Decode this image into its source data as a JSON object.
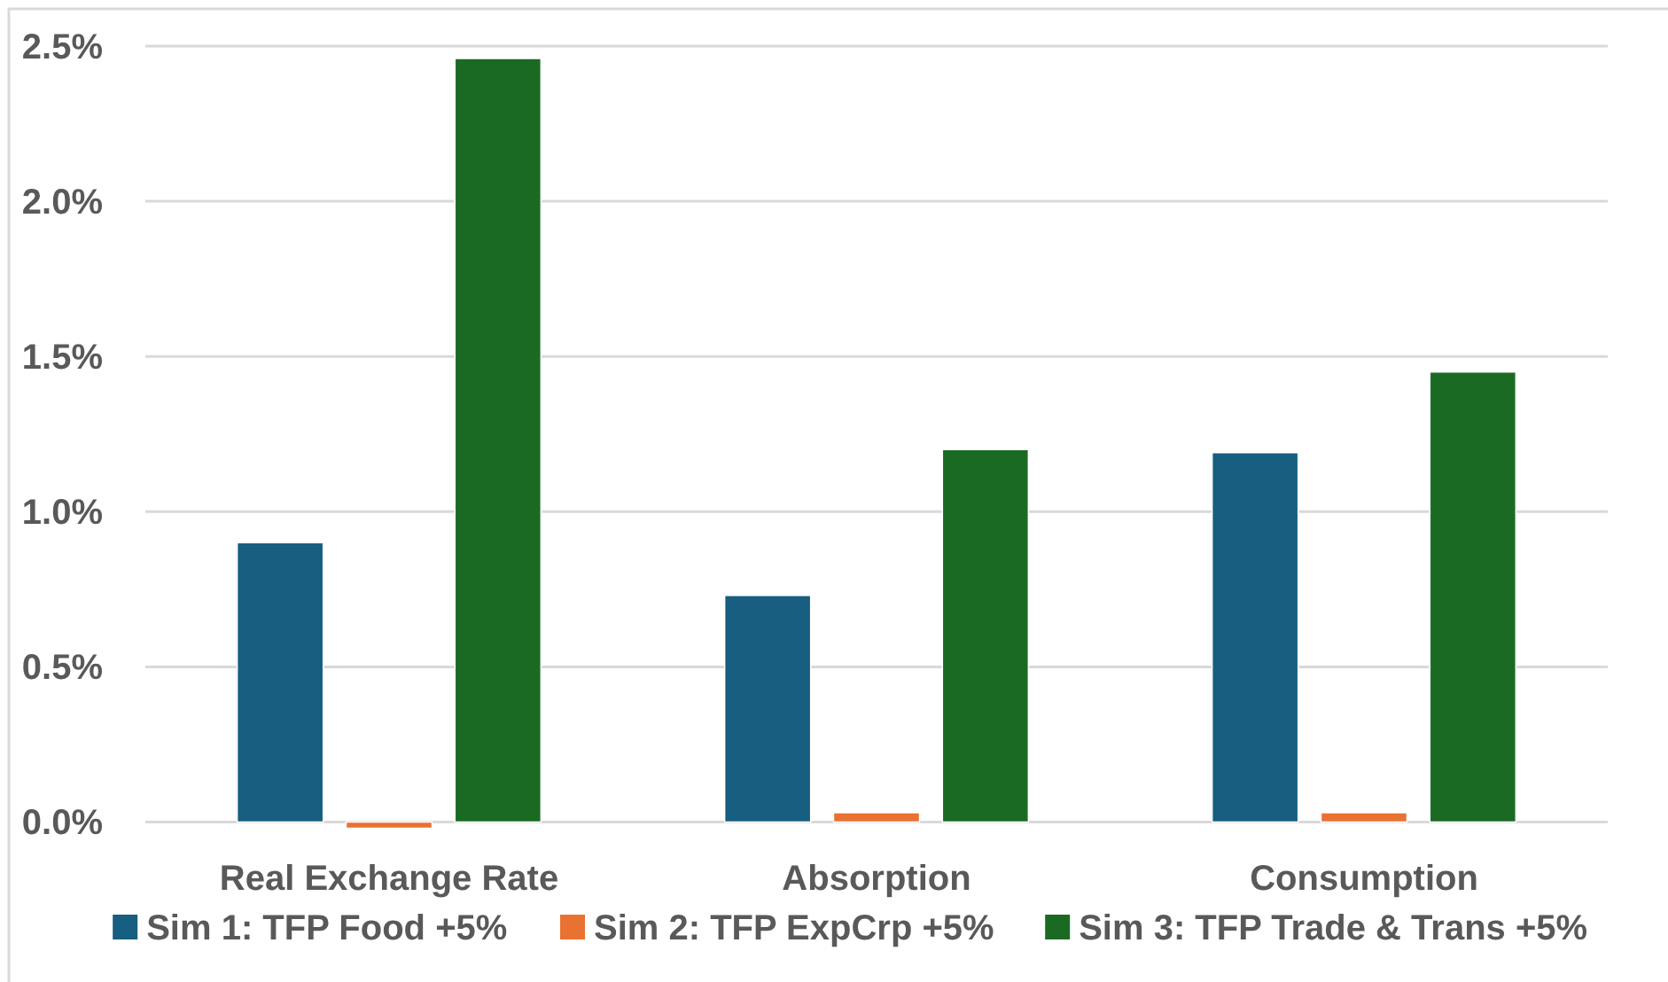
{
  "chart_data": {
    "type": "bar",
    "categories": [
      "Real Exchange Rate",
      "Absorption",
      "Consumption"
    ],
    "series": [
      {
        "name": "Sim 1: TFP Food +5%",
        "color": "#175e80",
        "values": [
          0.9,
          0.73,
          1.19
        ]
      },
      {
        "name": "Sim 2: TFP ExpCrp +5%",
        "color": "#e97132",
        "values": [
          -0.02,
          0.03,
          0.03
        ]
      },
      {
        "name": "Sim 3: TFP Trade & Trans +5%",
        "color": "#1b6a24",
        "values": [
          2.46,
          1.2,
          1.45
        ]
      }
    ],
    "ylim": [
      -0.03,
      2.5
    ],
    "yticks": [
      {
        "value": 0,
        "label": "0.0%"
      },
      {
        "value": 0.5,
        "label": "0.5%"
      },
      {
        "value": 1,
        "label": "1.0%"
      },
      {
        "value": 1.5,
        "label": "1.5%"
      },
      {
        "value": 2,
        "label": "2.0%"
      },
      {
        "value": 2.5,
        "label": "2.5%"
      }
    ],
    "grid": "y",
    "legend": "bottom"
  }
}
